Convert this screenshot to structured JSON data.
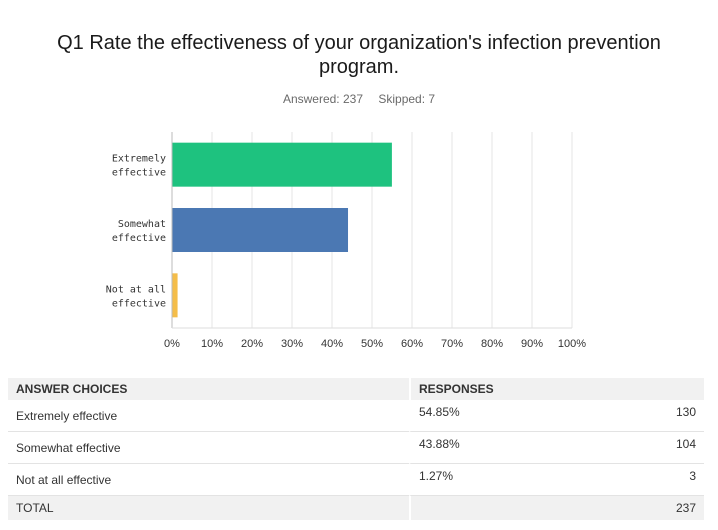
{
  "question": {
    "title": "Q1 Rate the effectiveness of your organization's infection prevention program.",
    "answered_label": "Answered: 237",
    "skipped_label": "Skipped: 7"
  },
  "chart_data": {
    "type": "bar",
    "orientation": "horizontal",
    "categories": [
      [
        "Extremely",
        "effective"
      ],
      [
        "Somewhat",
        "effective"
      ],
      [
        "Not at all",
        "effective"
      ]
    ],
    "values": [
      54.85,
      43.88,
      1.27
    ],
    "colors": [
      "#1ec27f",
      "#4b78b3",
      "#f4bd4a"
    ],
    "xlim": [
      0,
      100
    ],
    "xticks": [
      "0%",
      "10%",
      "20%",
      "30%",
      "40%",
      "50%",
      "60%",
      "70%",
      "80%",
      "90%",
      "100%"
    ],
    "grid": true
  },
  "table": {
    "headers": [
      "ANSWER CHOICES",
      "RESPONSES",
      ""
    ],
    "rows": [
      {
        "choice": "Extremely effective",
        "percent": "54.85%",
        "count": "130"
      },
      {
        "choice": "Somewhat effective",
        "percent": "43.88%",
        "count": "104"
      },
      {
        "choice": "Not at all effective",
        "percent": "1.27%",
        "count": "3"
      }
    ],
    "total_label": "TOTAL",
    "total_count": "237"
  }
}
